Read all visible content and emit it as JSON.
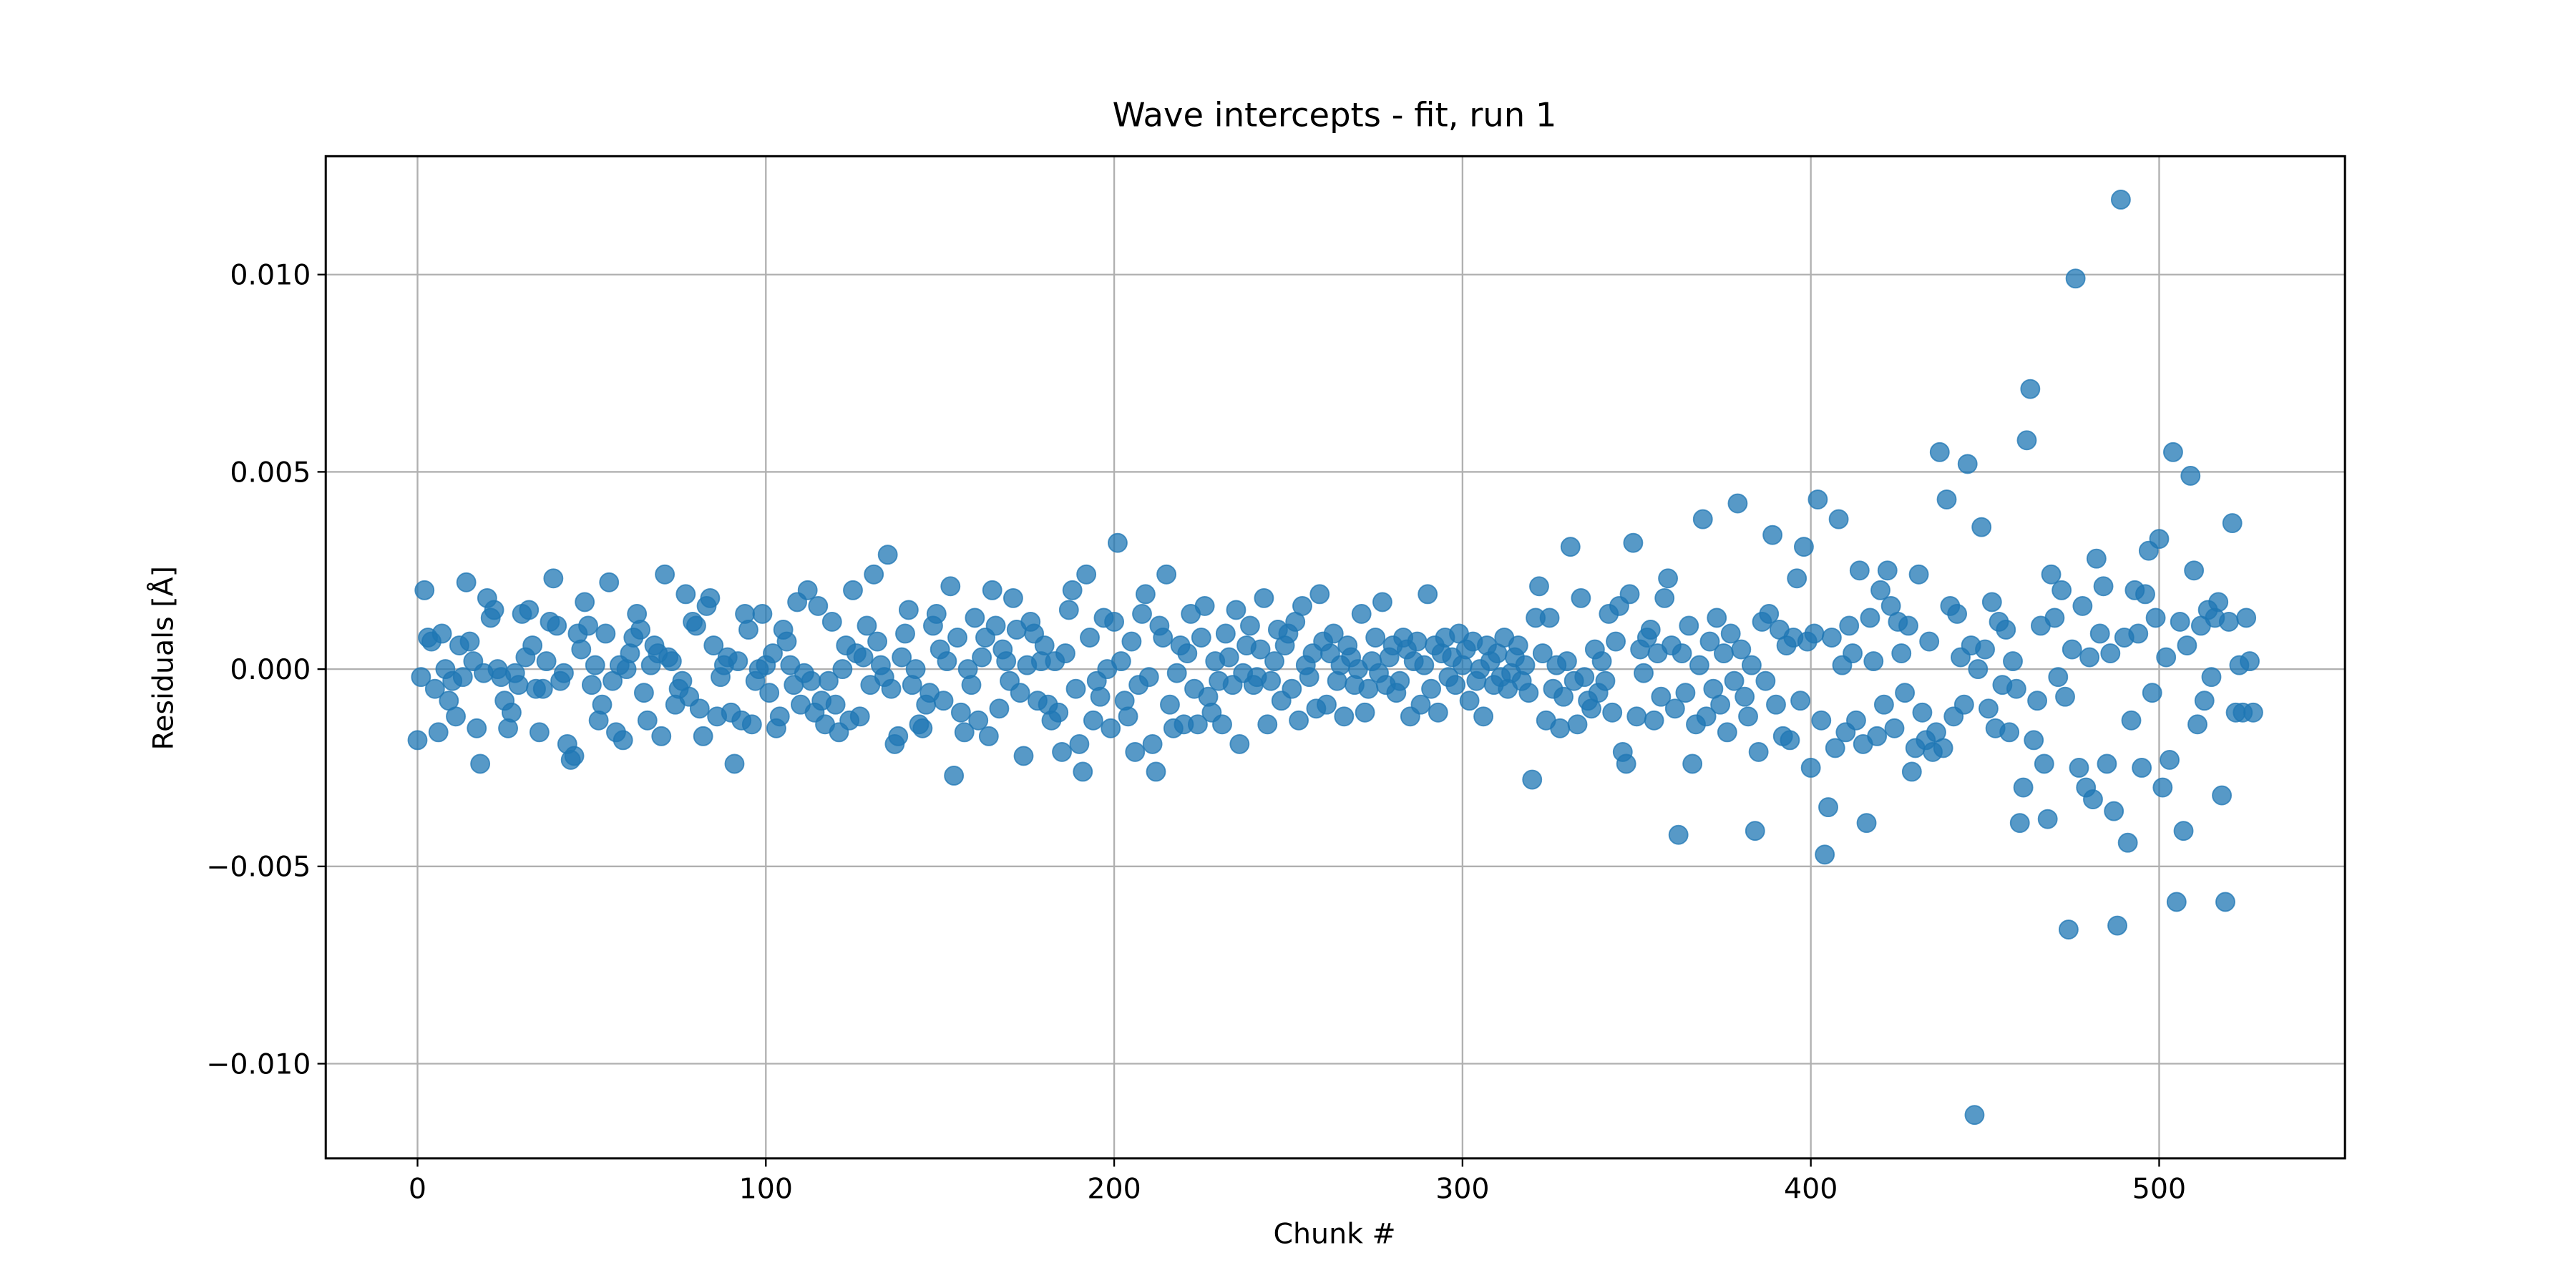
{
  "chart_data": {
    "type": "scatter",
    "title": "Wave intercepts - fit, run 1",
    "xlabel": "Chunk #",
    "ylabel": "Residuals [Å]",
    "color": "#1f77b4",
    "grid": true,
    "xlim": [
      -26.35,
      553.35
    ],
    "xticks": [
      0,
      100,
      200,
      300,
      400,
      500
    ],
    "ylim": [
      -0.0124,
      0.013
    ],
    "yticks": [
      {
        "value": -0.01,
        "label": "−0.010"
      },
      {
        "value": -0.005,
        "label": "−0.005"
      },
      {
        "value": 0,
        "label": "0.000"
      },
      {
        "value": 0.005,
        "label": "0.005"
      },
      {
        "value": 0.01,
        "label": "0.010"
      }
    ],
    "x": [
      0,
      1,
      2,
      3,
      4,
      5,
      6,
      7,
      8,
      9,
      10,
      11,
      12,
      13,
      14,
      15,
      16,
      17,
      18,
      19,
      20,
      21,
      22,
      23,
      24,
      25,
      26,
      27,
      28,
      29,
      30,
      31,
      32,
      33,
      34,
      35,
      36,
      37,
      38,
      39,
      40,
      41,
      42,
      43,
      44,
      45,
      46,
      47,
      48,
      49,
      50,
      51,
      52,
      53,
      54,
      55,
      56,
      57,
      58,
      59,
      60,
      61,
      62,
      63,
      64,
      65,
      66,
      67,
      68,
      69,
      70,
      71,
      72,
      73,
      74,
      75,
      76,
      77,
      78,
      79,
      80,
      81,
      82,
      83,
      84,
      85,
      86,
      87,
      88,
      89,
      90,
      91,
      92,
      93,
      94,
      95,
      96,
      97,
      98,
      99,
      100,
      101,
      102,
      103,
      104,
      105,
      106,
      107,
      108,
      109,
      110,
      111,
      112,
      113,
      114,
      115,
      116,
      117,
      118,
      119,
      120,
      121,
      122,
      123,
      124,
      125,
      126,
      127,
      128,
      129,
      130,
      131,
      132,
      133,
      134,
      135,
      136,
      137,
      138,
      139,
      140,
      141,
      142,
      143,
      144,
      145,
      146,
      147,
      148,
      149,
      150,
      151,
      152,
      153,
      154,
      155,
      156,
      157,
      158,
      159,
      160,
      161,
      162,
      163,
      164,
      165,
      166,
      167,
      168,
      169,
      170,
      171,
      172,
      173,
      174,
      175,
      176,
      177,
      178,
      179,
      180,
      181,
      182,
      183,
      184,
      185,
      186,
      187,
      188,
      189,
      190,
      191,
      192,
      193,
      194,
      195,
      196,
      197,
      198,
      199,
      200,
      201,
      202,
      203,
      204,
      205,
      206,
      207,
      208,
      209,
      210,
      211,
      212,
      213,
      214,
      215,
      216,
      217,
      218,
      219,
      220,
      221,
      222,
      223,
      224,
      225,
      226,
      227,
      228,
      229,
      230,
      231,
      232,
      233,
      234,
      235,
      236,
      237,
      238,
      239,
      240,
      241,
      242,
      243,
      244,
      245,
      246,
      247,
      248,
      249,
      250,
      251,
      252,
      253,
      254,
      255,
      256,
      257,
      258,
      259,
      260,
      261,
      262,
      263,
      264,
      265,
      266,
      267,
      268,
      269,
      270,
      271,
      272,
      273,
      274,
      275,
      276,
      277,
      278,
      279,
      280,
      281,
      282,
      283,
      284,
      285,
      286,
      287,
      288,
      289,
      290,
      291,
      292,
      293,
      294,
      295,
      296,
      297,
      298,
      299,
      300,
      301,
      302,
      303,
      304,
      305,
      306,
      307,
      308,
      309,
      310,
      311,
      312,
      313,
      314,
      315,
      316,
      317,
      318,
      319,
      320,
      321,
      322,
      323,
      324,
      325,
      326,
      327,
      328,
      329,
      330,
      331,
      332,
      333,
      334,
      335,
      336,
      337,
      338,
      339,
      340,
      341,
      342,
      343,
      344,
      345,
      346,
      347,
      348,
      349,
      350,
      351,
      352,
      353,
      354,
      355,
      356,
      357,
      358,
      359,
      360,
      361,
      362,
      363,
      364,
      365,
      366,
      367,
      368,
      369,
      370,
      371,
      372,
      373,
      374,
      375,
      376,
      377,
      378,
      379,
      380,
      381,
      382,
      383,
      384,
      385,
      386,
      387,
      388,
      389,
      390,
      391,
      392,
      393,
      394,
      395,
      396,
      397,
      398,
      399,
      400,
      401,
      402,
      403,
      404,
      405,
      406,
      407,
      408,
      409,
      410,
      411,
      412,
      413,
      414,
      415,
      416,
      417,
      418,
      419,
      420,
      421,
      422,
      423,
      424,
      425,
      426,
      427,
      428,
      429,
      430,
      431,
      432,
      433,
      434,
      435,
      436,
      437,
      438,
      439,
      440,
      441,
      442,
      443,
      444,
      445,
      446,
      447,
      448,
      449,
      450,
      451,
      452,
      453,
      454,
      455,
      456,
      457,
      458,
      459,
      460,
      461,
      462,
      463,
      464,
      465,
      466,
      467,
      468,
      469,
      470,
      471,
      472,
      473,
      474,
      475,
      476,
      477,
      478,
      479,
      480,
      481,
      482,
      483,
      484,
      485,
      486,
      487,
      488,
      489,
      490,
      491,
      492,
      493,
      494,
      495,
      496,
      497,
      498,
      499,
      500,
      501,
      502,
      503,
      504,
      505,
      506,
      507,
      508,
      509,
      510,
      511,
      512,
      513,
      514,
      515,
      516,
      517,
      518,
      519,
      520,
      521,
      522,
      523,
      524,
      525,
      526,
      527
    ],
    "values": [
      -0.0018,
      -0.0002,
      0.002,
      0.0008,
      0.0007,
      -0.0005,
      -0.0016,
      0.0009,
      0.0,
      -0.0008,
      -0.0003,
      -0.0012,
      0.0006,
      -0.0002,
      0.0022,
      0.0007,
      0.0002,
      -0.0015,
      -0.0024,
      -0.0001,
      0.0018,
      0.0013,
      0.0015,
      0.0,
      -0.0002,
      -0.0008,
      -0.0015,
      -0.0011,
      -0.0001,
      -0.0004,
      0.0014,
      0.0003,
      0.0015,
      0.0006,
      -0.0005,
      -0.0016,
      -0.0005,
      0.0002,
      0.0012,
      0.0023,
      0.0011,
      -0.0003,
      -0.0001,
      -0.0019,
      -0.0023,
      -0.0022,
      0.0009,
      0.0005,
      0.0017,
      0.0011,
      -0.0004,
      0.0001,
      -0.0013,
      -0.0009,
      0.0009,
      0.0022,
      -0.0003,
      -0.0016,
      0.0001,
      -0.0018,
      0.0,
      0.0004,
      0.0008,
      0.0014,
      0.001,
      -0.0006,
      -0.0013,
      0.0001,
      0.0006,
      0.0004,
      -0.0017,
      0.0024,
      0.0003,
      0.0002,
      -0.0009,
      -0.0005,
      -0.0003,
      0.0019,
      -0.0007,
      0.0012,
      0.0011,
      -0.001,
      -0.0017,
      0.0016,
      0.0018,
      0.0006,
      -0.0012,
      -0.0002,
      0.0001,
      0.0003,
      -0.0011,
      -0.0024,
      0.0002,
      -0.0013,
      0.0014,
      0.001,
      -0.0014,
      -0.0003,
      0.0,
      0.0014,
      0.0001,
      -0.0006,
      0.0004,
      -0.0015,
      -0.0012,
      0.001,
      0.0007,
      0.0001,
      -0.0004,
      0.0017,
      -0.0009,
      -0.0001,
      0.002,
      -0.0003,
      -0.0011,
      0.0016,
      -0.0008,
      -0.0014,
      -0.0003,
      0.0012,
      -0.0009,
      -0.0016,
      0.0,
      0.0006,
      -0.0013,
      0.002,
      0.0004,
      -0.0012,
      0.0003,
      0.0011,
      -0.0004,
      0.0024,
      0.0007,
      0.0001,
      -0.0002,
      0.0029,
      -0.0005,
      -0.0019,
      -0.0017,
      0.0003,
      0.0009,
      0.0015,
      -0.0004,
      0.0,
      -0.0014,
      -0.0015,
      -0.0009,
      -0.0006,
      0.0011,
      0.0014,
      0.0005,
      -0.0008,
      0.0002,
      0.0021,
      -0.0027,
      0.0008,
      -0.0011,
      -0.0016,
      0.0,
      -0.0004,
      0.0013,
      -0.0013,
      0.0003,
      0.0008,
      -0.0017,
      0.002,
      0.0011,
      -0.001,
      0.0005,
      0.0002,
      -0.0003,
      0.0018,
      0.001,
      -0.0006,
      -0.0022,
      0.0001,
      0.0012,
      0.0009,
      -0.0008,
      0.0002,
      0.0006,
      -0.0009,
      -0.0013,
      0.0002,
      -0.0011,
      -0.0021,
      0.0004,
      0.0015,
      0.002,
      -0.0005,
      -0.0019,
      -0.0026,
      0.0024,
      0.0008,
      -0.0013,
      -0.0003,
      -0.0007,
      0.0013,
      0.0,
      -0.0015,
      0.0012,
      0.0032,
      0.0002,
      -0.0008,
      -0.0012,
      0.0007,
      -0.0021,
      -0.0004,
      0.0014,
      0.0019,
      -0.0002,
      -0.0019,
      -0.0026,
      0.0011,
      0.0008,
      0.0024,
      -0.0009,
      -0.0015,
      -0.0001,
      0.0006,
      -0.0014,
      0.0004,
      0.0014,
      -0.0005,
      -0.0014,
      0.0008,
      0.0016,
      -0.0007,
      -0.0011,
      0.0002,
      -0.0003,
      -0.0014,
      0.0009,
      0.0003,
      -0.0004,
      0.0015,
      -0.0019,
      -0.0001,
      0.0006,
      0.0011,
      -0.0004,
      -0.0002,
      0.0005,
      0.0018,
      -0.0014,
      -0.0003,
      0.0002,
      0.001,
      -0.0008,
      0.0006,
      0.0009,
      -0.0005,
      0.0012,
      -0.0013,
      0.0016,
      0.0001,
      -0.0002,
      0.0004,
      -0.001,
      0.0019,
      0.0007,
      -0.0009,
      0.0004,
      0.0009,
      -0.0003,
      0.0001,
      -0.0012,
      0.0006,
      0.0003,
      -0.0004,
      0.0,
      0.0014,
      -0.0011,
      -0.0005,
      0.0002,
      0.0008,
      -0.0001,
      0.0017,
      -0.0004,
      0.0003,
      0.0006,
      -0.0006,
      -0.0003,
      0.0008,
      0.0005,
      -0.0012,
      0.0002,
      0.0007,
      -0.0009,
      0.0001,
      0.0019,
      -0.0005,
      0.0006,
      -0.0011,
      0.0004,
      0.0008,
      -0.0002,
      0.0003,
      -0.0004,
      0.0009,
      0.0001,
      0.0005,
      -0.0008,
      0.0007,
      -0.0003,
      0.0,
      -0.0012,
      0.0006,
      0.0002,
      -0.0004,
      0.0004,
      -0.0002,
      0.0008,
      -0.0005,
      -0.0001,
      0.0003,
      0.0006,
      -0.0003,
      0.0001,
      -0.0006,
      -0.0028,
      0.0013,
      0.0021,
      0.0004,
      -0.0013,
      0.0013,
      -0.0005,
      0.0001,
      -0.0015,
      -0.0007,
      0.0002,
      0.0031,
      -0.0003,
      -0.0014,
      0.0018,
      -0.0002,
      -0.0008,
      -0.001,
      0.0005,
      -0.0006,
      0.0002,
      -0.0003,
      0.0014,
      -0.0011,
      0.0007,
      0.0016,
      -0.0021,
      -0.0024,
      0.0019,
      0.0032,
      -0.0012,
      0.0005,
      -0.0001,
      0.0008,
      0.001,
      -0.0013,
      0.0004,
      -0.0007,
      0.0018,
      0.0023,
      0.0006,
      -0.001,
      -0.0042,
      0.0004,
      -0.0006,
      0.0011,
      -0.0024,
      -0.0014,
      0.0001,
      0.0038,
      -0.0012,
      0.0007,
      -0.0005,
      0.0013,
      -0.0009,
      0.0004,
      -0.0016,
      0.0009,
      -0.0003,
      0.0042,
      0.0005,
      -0.0007,
      -0.0012,
      0.0001,
      -0.0041,
      -0.0021,
      0.0012,
      -0.0003,
      0.0014,
      0.0034,
      -0.0009,
      0.001,
      -0.0017,
      0.0006,
      -0.0018,
      0.0008,
      0.0023,
      -0.0008,
      0.0031,
      0.0007,
      -0.0025,
      0.0009,
      0.0043,
      -0.0013,
      -0.0047,
      -0.0035,
      0.0008,
      -0.002,
      0.0038,
      0.0001,
      -0.0016,
      0.0011,
      0.0004,
      -0.0013,
      0.0025,
      -0.0019,
      -0.0039,
      0.0013,
      0.0002,
      -0.0017,
      0.002,
      -0.0009,
      0.0025,
      0.0016,
      -0.0015,
      0.0012,
      0.0004,
      -0.0006,
      0.0011,
      -0.0026,
      -0.002,
      0.0024,
      -0.0011,
      -0.0018,
      0.0007,
      -0.0021,
      -0.0016,
      0.0055,
      -0.002,
      0.0043,
      0.0016,
      -0.0012,
      0.0014,
      0.0003,
      -0.0009,
      0.0052,
      0.0006,
      -0.0113,
      0.0,
      0.0036,
      0.0005,
      -0.001,
      0.0017,
      -0.0015,
      0.0012,
      -0.0004,
      0.001,
      -0.0016,
      0.0002,
      -0.0005,
      -0.0039,
      -0.003,
      0.0058,
      0.0071,
      -0.0018,
      -0.0008,
      0.0011,
      -0.0024,
      -0.0038,
      0.0024,
      0.0013,
      -0.0002,
      0.002,
      -0.0007,
      -0.0066,
      0.0005,
      0.0099,
      -0.0025,
      0.0016,
      -0.003,
      0.0003,
      -0.0033,
      0.0028,
      0.0009,
      0.0021,
      -0.0024,
      0.0004,
      -0.0036,
      -0.0065,
      0.0119,
      0.0008,
      -0.0044,
      -0.0013,
      0.002,
      0.0009,
      -0.0025,
      0.0019,
      0.003,
      -0.0006,
      0.0013,
      0.0033,
      -0.003,
      0.0003,
      -0.0023,
      0.0055,
      -0.0059,
      0.0012,
      -0.0041,
      0.0006,
      0.0049,
      0.0025,
      -0.0014,
      0.0011,
      -0.0008,
      0.0015,
      -0.0002,
      0.0013,
      0.0017,
      -0.0032,
      -0.0059,
      0.0012,
      0.0037,
      -0.0011,
      0.0001,
      -0.0011,
      0.0013,
      0.0002,
      -0.0011
    ]
  }
}
